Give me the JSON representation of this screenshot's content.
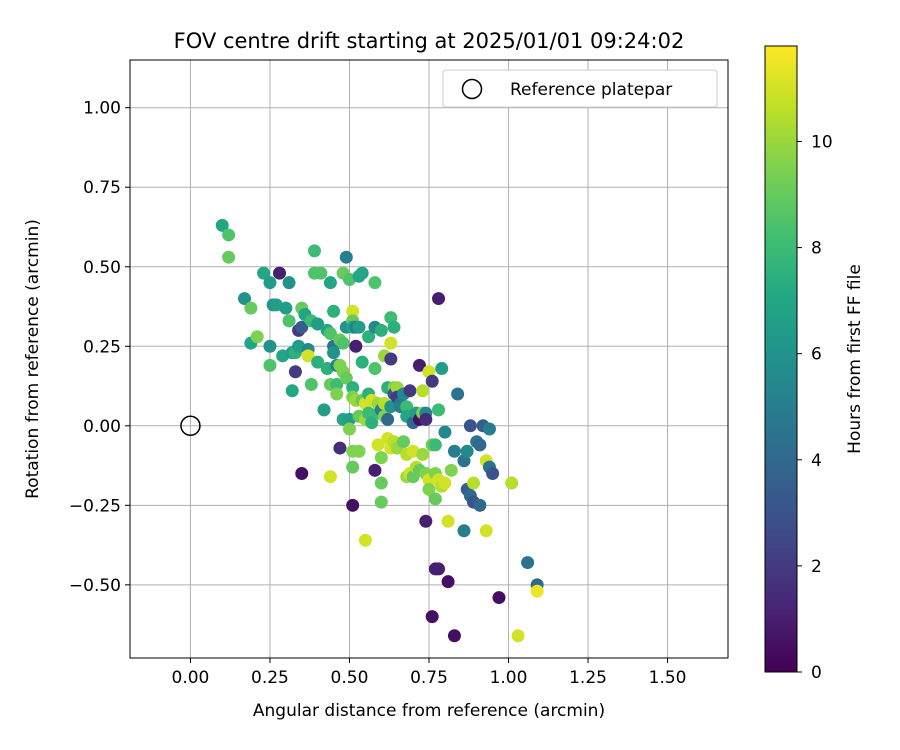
{
  "chart_data": {
    "type": "scatter",
    "title": "FOV centre drift starting at 2025/01/01 09:24:02",
    "xlabel": "Angular distance from reference (arcmin)",
    "ylabel": "Rotation from reference (arcmin)",
    "xlim": [
      -0.19,
      1.69
    ],
    "ylim": [
      -0.73,
      1.15
    ],
    "xticks": [
      "0.00",
      "0.25",
      "0.50",
      "0.75",
      "1.00",
      "1.25",
      "1.50"
    ],
    "xtick_values": [
      0,
      0.25,
      0.5,
      0.75,
      1.0,
      1.25,
      1.5
    ],
    "yticks": [
      "−0.50",
      "−0.25",
      "0.00",
      "0.25",
      "0.50",
      "0.75",
      "1.00"
    ],
    "ytick_values": [
      -0.5,
      -0.25,
      0,
      0.25,
      0.5,
      0.75,
      1.0
    ],
    "grid": true,
    "legend": {
      "position": "top-right",
      "label": "Reference platepar"
    },
    "reference_point": {
      "x": 0.0,
      "y": 0.0
    },
    "colorbar": {
      "label": "Hours from first FF file",
      "min": 0,
      "max": 11.8,
      "ticks": [
        "0",
        "2",
        "4",
        "6",
        "8",
        "10"
      ],
      "tick_values": [
        0,
        2,
        4,
        6,
        8,
        10
      ],
      "colormap": "viridis"
    },
    "points": [
      [
        0.1,
        0.63,
        7.0
      ],
      [
        0.12,
        0.6,
        8.5
      ],
      [
        0.12,
        0.53,
        9.0
      ],
      [
        0.17,
        0.4,
        6.0
      ],
      [
        0.19,
        0.37,
        9.0
      ],
      [
        0.19,
        0.26,
        7.0
      ],
      [
        0.21,
        0.28,
        9.5
      ],
      [
        0.23,
        0.48,
        7.0
      ],
      [
        0.25,
        0.45,
        6.5
      ],
      [
        0.25,
        0.25,
        6.0
      ],
      [
        0.25,
        0.19,
        8.5
      ],
      [
        0.26,
        0.38,
        6.0
      ],
      [
        0.27,
        0.38,
        6.5
      ],
      [
        0.28,
        0.48,
        1.0
      ],
      [
        0.29,
        0.22,
        7.0
      ],
      [
        0.3,
        0.37,
        6.5
      ],
      [
        0.31,
        0.45,
        6.0
      ],
      [
        0.31,
        0.33,
        8.5
      ],
      [
        0.32,
        0.23,
        6.5
      ],
      [
        0.32,
        0.11,
        7.0
      ],
      [
        0.33,
        0.17,
        2.0
      ],
      [
        0.33,
        0.23,
        7.5
      ],
      [
        0.34,
        0.3,
        2.0
      ],
      [
        0.34,
        0.25,
        6.5
      ],
      [
        0.35,
        0.37,
        9.0
      ],
      [
        0.35,
        0.31,
        3.5
      ],
      [
        0.35,
        -0.15,
        0.5
      ],
      [
        0.36,
        0.35,
        7.0
      ],
      [
        0.37,
        0.24,
        5.5
      ],
      [
        0.37,
        0.22,
        11.0
      ],
      [
        0.38,
        0.33,
        8.0
      ],
      [
        0.38,
        0.13,
        8.5
      ],
      [
        0.39,
        0.55,
        8.0
      ],
      [
        0.39,
        0.48,
        8.5
      ],
      [
        0.4,
        0.32,
        6.5
      ],
      [
        0.4,
        0.2,
        7.5
      ],
      [
        0.41,
        0.48,
        8.5
      ],
      [
        0.42,
        0.05,
        6.5
      ],
      [
        0.43,
        0.3,
        7.0
      ],
      [
        0.43,
        0.18,
        7.5
      ],
      [
        0.44,
        0.45,
        7.0
      ],
      [
        0.44,
        0.29,
        8.5
      ],
      [
        0.44,
        0.13,
        9.0
      ],
      [
        0.44,
        -0.16,
        11.0
      ],
      [
        0.45,
        0.36,
        7.5
      ],
      [
        0.45,
        0.25,
        4.5
      ],
      [
        0.45,
        0.23,
        6.0
      ],
      [
        0.46,
        0.19,
        5.0
      ],
      [
        0.46,
        0.13,
        8.0
      ],
      [
        0.46,
        0.1,
        9.5
      ],
      [
        0.47,
        0.27,
        9.0
      ],
      [
        0.47,
        0.19,
        9.5
      ],
      [
        0.47,
        -0.07,
        1.5
      ],
      [
        0.48,
        0.48,
        9.0
      ],
      [
        0.48,
        0.26,
        8.5
      ],
      [
        0.48,
        0.17,
        9.5
      ],
      [
        0.48,
        0.02,
        7.0
      ],
      [
        0.49,
        0.53,
        5.0
      ],
      [
        0.49,
        0.31,
        6.0
      ],
      [
        0.49,
        0.15,
        9.0
      ],
      [
        0.5,
        0.46,
        8.5
      ],
      [
        0.5,
        0.02,
        6.5
      ],
      [
        0.5,
        -0.01,
        9.5
      ],
      [
        0.51,
        0.36,
        11.0
      ],
      [
        0.51,
        0.33,
        9.0
      ],
      [
        0.51,
        0.31,
        7.0
      ],
      [
        0.51,
        0.12,
        7.5
      ],
      [
        0.51,
        0.09,
        9.5
      ],
      [
        0.51,
        -0.08,
        9.5
      ],
      [
        0.51,
        -0.13,
        9.0
      ],
      [
        0.51,
        -0.25,
        0.5
      ],
      [
        0.52,
        0.31,
        5.0
      ],
      [
        0.52,
        0.25,
        1.0
      ],
      [
        0.52,
        0.08,
        10.0
      ],
      [
        0.53,
        0.47,
        7.0
      ],
      [
        0.53,
        0.31,
        6.5
      ],
      [
        0.53,
        0.03,
        9.0
      ],
      [
        0.53,
        -0.08,
        9.5
      ],
      [
        0.54,
        0.48,
        7.0
      ],
      [
        0.54,
        0.2,
        7.5
      ],
      [
        0.54,
        0.08,
        9.0
      ],
      [
        0.55,
        0.07,
        11.0
      ],
      [
        0.55,
        0.02,
        10.0
      ],
      [
        0.55,
        -0.36,
        11.0
      ],
      [
        0.56,
        0.28,
        7.5
      ],
      [
        0.56,
        0.1,
        7.5
      ],
      [
        0.56,
        0.04,
        8.0
      ],
      [
        0.57,
        0.08,
        11.0
      ],
      [
        0.57,
        0.01,
        7.5
      ],
      [
        0.58,
        0.45,
        8.5
      ],
      [
        0.58,
        0.31,
        5.5
      ],
      [
        0.58,
        0.18,
        8.5
      ],
      [
        0.58,
        -0.14,
        1.0
      ],
      [
        0.59,
        0.04,
        8.0
      ],
      [
        0.59,
        0.07,
        10.0
      ],
      [
        0.59,
        -0.06,
        11.0
      ],
      [
        0.6,
        0.3,
        7.5
      ],
      [
        0.6,
        0.05,
        5.0
      ],
      [
        0.6,
        -0.1,
        9.5
      ],
      [
        0.6,
        -0.18,
        9.0
      ],
      [
        0.6,
        -0.24,
        9.0
      ],
      [
        0.61,
        0.22,
        10.0
      ],
      [
        0.61,
        0.07,
        10.5
      ],
      [
        0.61,
        0.03,
        9.5
      ],
      [
        0.62,
        0.12,
        7.5
      ],
      [
        0.62,
        0.02,
        4.0
      ],
      [
        0.62,
        -0.04,
        11.0
      ],
      [
        0.63,
        0.34,
        8.0
      ],
      [
        0.63,
        0.26,
        11.0
      ],
      [
        0.63,
        0.21,
        2.0
      ],
      [
        0.63,
        0.06,
        6.0
      ],
      [
        0.63,
        -0.07,
        11.0
      ],
      [
        0.64,
        0.31,
        7.5
      ],
      [
        0.64,
        0.12,
        9.5
      ],
      [
        0.64,
        0.1,
        3.0
      ],
      [
        0.64,
        -0.05,
        10.5
      ],
      [
        0.65,
        0.12,
        10.0
      ],
      [
        0.65,
        0.09,
        2.0
      ],
      [
        0.65,
        -0.07,
        10.0
      ],
      [
        0.66,
        0.07,
        4.5
      ],
      [
        0.66,
        0.06,
        5.0
      ],
      [
        0.67,
        0.1,
        5.5
      ],
      [
        0.67,
        -0.05,
        9.0
      ],
      [
        0.68,
        0.06,
        8.0
      ],
      [
        0.68,
        0.03,
        7.0
      ],
      [
        0.68,
        -0.09,
        10.5
      ],
      [
        0.68,
        -0.16,
        10.0
      ],
      [
        0.69,
        0.11,
        2.0
      ],
      [
        0.69,
        -0.15,
        11.0
      ],
      [
        0.7,
        0.01,
        4.0
      ],
      [
        0.7,
        -0.08,
        11.0
      ],
      [
        0.7,
        -0.16,
        9.0
      ],
      [
        0.71,
        0.04,
        6.5
      ],
      [
        0.71,
        -0.13,
        10.5
      ],
      [
        0.72,
        0.19,
        1.0
      ],
      [
        0.72,
        0.02,
        0.5
      ],
      [
        0.72,
        -0.14,
        9.0
      ],
      [
        0.73,
        0.11,
        10.5
      ],
      [
        0.73,
        0.04,
        9.5
      ],
      [
        0.73,
        -0.09,
        10.0
      ],
      [
        0.74,
        0.04,
        5.5
      ],
      [
        0.74,
        0.02,
        1.5
      ],
      [
        0.74,
        -0.15,
        9.5
      ],
      [
        0.74,
        -0.3,
        1.0
      ],
      [
        0.75,
        0.17,
        11.0
      ],
      [
        0.75,
        -0.17,
        11.0
      ],
      [
        0.75,
        -0.2,
        9.5
      ],
      [
        0.76,
        0.14,
        2.0
      ],
      [
        0.76,
        -0.06,
        9.0
      ],
      [
        0.76,
        -0.6,
        0.5
      ],
      [
        0.77,
        -0.06,
        8.0
      ],
      [
        0.77,
        -0.23,
        9.0
      ],
      [
        0.77,
        -0.15,
        9.5
      ],
      [
        0.77,
        -0.45,
        1.0
      ],
      [
        0.78,
        0.4,
        1.0
      ],
      [
        0.78,
        0.05,
        8.0
      ],
      [
        0.78,
        -0.17,
        11.0
      ],
      [
        0.78,
        -0.45,
        1.0
      ],
      [
        0.79,
        0.18,
        6.5
      ],
      [
        0.79,
        -0.19,
        10.5
      ],
      [
        0.8,
        -0.18,
        11.0
      ],
      [
        0.8,
        -0.02,
        5.5
      ],
      [
        0.81,
        -0.3,
        11.0
      ],
      [
        0.81,
        -0.49,
        0.5
      ],
      [
        0.82,
        -0.14,
        9.5
      ],
      [
        0.83,
        -0.08,
        5.0
      ],
      [
        0.83,
        -0.66,
        0.5
      ],
      [
        0.84,
        0.1,
        4.5
      ],
      [
        0.86,
        -0.11,
        4.5
      ],
      [
        0.86,
        -0.33,
        5.0
      ],
      [
        0.87,
        -0.08,
        5.5
      ],
      [
        0.87,
        -0.2,
        3.5
      ],
      [
        0.88,
        0.0,
        3.0
      ],
      [
        0.88,
        -0.22,
        4.0
      ],
      [
        0.89,
        -0.18,
        10.5
      ],
      [
        0.89,
        -0.24,
        3.0
      ],
      [
        0.9,
        -0.05,
        4.5
      ],
      [
        0.91,
        -0.06,
        4.0
      ],
      [
        0.91,
        -0.25,
        4.0
      ],
      [
        0.92,
        0.0,
        3.5
      ],
      [
        0.93,
        -0.11,
        11.0
      ],
      [
        0.93,
        -0.33,
        11.0
      ],
      [
        0.94,
        -0.13,
        4.5
      ],
      [
        0.94,
        -0.01,
        5.0
      ],
      [
        0.95,
        -0.15,
        3.0
      ],
      [
        0.97,
        -0.54,
        0.5
      ],
      [
        1.01,
        -0.18,
        10.5
      ],
      [
        1.03,
        -0.66,
        11.0
      ],
      [
        1.06,
        -0.43,
        4.5
      ],
      [
        1.09,
        -0.5,
        4.0
      ],
      [
        1.09,
        -0.52,
        11.5
      ]
    ]
  }
}
